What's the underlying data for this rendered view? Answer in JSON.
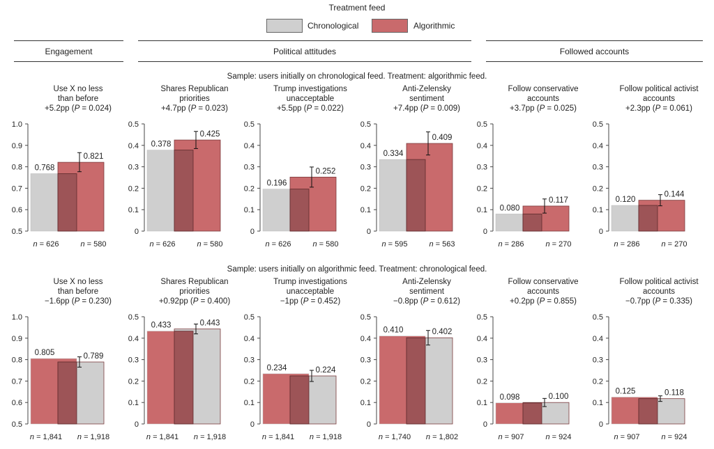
{
  "legend": {
    "title": "Treatment feed",
    "items": [
      {
        "label": "Chronological",
        "color": "#cfcfcf"
      },
      {
        "label": "Algorithmic",
        "color": "#c96a6c"
      }
    ]
  },
  "groups": [
    {
      "label": "Engagement"
    },
    {
      "label": "Political attitudes"
    },
    {
      "label": "Followed accounts"
    }
  ],
  "samples": [
    "Sample: users initially on chronological feed. Treatment: algorithmic feed.",
    "Sample: users initially on algorithmic feed. Treatment: chronological feed."
  ],
  "chart_data": [
    {
      "type": "bar",
      "row": 0,
      "title_lines": [
        "Use X no less",
        "than before"
      ],
      "effect": "+5.2pp",
      "p": "0.024",
      "ylim": [
        0.5,
        1.0
      ],
      "ticks": [
        "0.5",
        "0.6",
        "0.7",
        "0.8",
        "0.9",
        "1.0"
      ],
      "bars": [
        {
          "series": "Chronological",
          "value": 0.768,
          "label": "0.768",
          "n": "626"
        },
        {
          "series": "Algorithmic",
          "value": 0.821,
          "label": "0.821",
          "n": "580",
          "err": [
            0.777,
            0.866
          ]
        }
      ]
    },
    {
      "type": "bar",
      "row": 0,
      "title_lines": [
        "Shares Republican",
        "priorities"
      ],
      "effect": "+4.7pp",
      "p": "0.023",
      "ylim": [
        0,
        0.5
      ],
      "ticks": [
        "0",
        "0.1",
        "0.2",
        "0.3",
        "0.4",
        "0.5"
      ],
      "bars": [
        {
          "series": "Chronological",
          "value": 0.378,
          "label": "0.378",
          "n": "626"
        },
        {
          "series": "Algorithmic",
          "value": 0.425,
          "label": "0.425",
          "n": "580",
          "err": [
            0.385,
            0.465
          ]
        }
      ]
    },
    {
      "type": "bar",
      "row": 0,
      "title_lines": [
        "Trump investigations",
        "unacceptable"
      ],
      "effect": "+5.5pp",
      "p": "0.022",
      "ylim": [
        0,
        0.5
      ],
      "ticks": [
        "0",
        "0.1",
        "0.2",
        "0.3",
        "0.4",
        "0.5"
      ],
      "bars": [
        {
          "series": "Chronological",
          "value": 0.196,
          "label": "0.196",
          "n": "626"
        },
        {
          "series": "Algorithmic",
          "value": 0.252,
          "label": "0.252",
          "n": "580",
          "err": [
            0.205,
            0.299
          ]
        }
      ]
    },
    {
      "type": "bar",
      "row": 0,
      "title_lines": [
        "Anti-Zelensky",
        "sentiment"
      ],
      "effect": "+7.4pp",
      "p": "0.009",
      "ylim": [
        0,
        0.5
      ],
      "ticks": [
        "0",
        "0.1",
        "0.2",
        "0.3",
        "0.4",
        "0.5"
      ],
      "bars": [
        {
          "series": "Chronological",
          "value": 0.334,
          "label": "0.334",
          "n": "595"
        },
        {
          "series": "Algorithmic",
          "value": 0.409,
          "label": "0.409",
          "n": "563",
          "err": [
            0.355,
            0.463
          ]
        }
      ]
    },
    {
      "type": "bar",
      "row": 0,
      "title_lines": [
        "Follow conservative",
        "accounts"
      ],
      "effect": "+3.7pp",
      "p": "0.025",
      "ylim": [
        0,
        0.5
      ],
      "ticks": [
        "0",
        "0.1",
        "0.2",
        "0.3",
        "0.4",
        "0.5"
      ],
      "bars": [
        {
          "series": "Chronological",
          "value": 0.08,
          "label": "0.080",
          "n": "286"
        },
        {
          "series": "Algorithmic",
          "value": 0.117,
          "label": "0.117",
          "n": "270",
          "err": [
            0.084,
            0.15
          ]
        }
      ]
    },
    {
      "type": "bar",
      "row": 0,
      "title_lines": [
        "Follow political activist",
        "accounts"
      ],
      "effect": "+2.3pp",
      "p": "0.061",
      "ylim": [
        0,
        0.5
      ],
      "ticks": [
        "0",
        "0.1",
        "0.2",
        "0.3",
        "0.4",
        "0.5"
      ],
      "bars": [
        {
          "series": "Chronological",
          "value": 0.12,
          "label": "0.120",
          "n": "286"
        },
        {
          "series": "Algorithmic",
          "value": 0.144,
          "label": "0.144",
          "n": "270",
          "err": [
            0.118,
            0.17
          ]
        }
      ]
    },
    {
      "type": "bar",
      "row": 1,
      "title_lines": [
        "Use X no less",
        "than before"
      ],
      "effect": "−1.6pp",
      "p": "0.230",
      "ylim": [
        0.5,
        1.0
      ],
      "ticks": [
        "0.5",
        "0.6",
        "0.7",
        "0.8",
        "0.9",
        "1.0"
      ],
      "bars": [
        {
          "series": "Algorithmic",
          "value": 0.805,
          "label": "0.805",
          "n": "1,841"
        },
        {
          "series": "Chronological",
          "value": 0.789,
          "label": "0.789",
          "n": "1,918",
          "err": [
            0.765,
            0.813
          ]
        }
      ]
    },
    {
      "type": "bar",
      "row": 1,
      "title_lines": [
        "Shares Republican",
        "priorities"
      ],
      "effect": "+0.92pp",
      "p": "0.400",
      "ylim": [
        0,
        0.5
      ],
      "ticks": [
        "0",
        "0.1",
        "0.2",
        "0.3",
        "0.4",
        "0.5"
      ],
      "bars": [
        {
          "series": "Algorithmic",
          "value": 0.433,
          "label": "0.433",
          "n": "1,841"
        },
        {
          "series": "Chronological",
          "value": 0.443,
          "label": "0.443",
          "n": "1,918",
          "err": [
            0.42,
            0.466
          ]
        }
      ]
    },
    {
      "type": "bar",
      "row": 1,
      "title_lines": [
        "Trump investigations",
        "unacceptable"
      ],
      "effect": "−1pp",
      "p": "0.452",
      "ylim": [
        0,
        0.5
      ],
      "ticks": [
        "0",
        "0.1",
        "0.2",
        "0.3",
        "0.4",
        "0.5"
      ],
      "bars": [
        {
          "series": "Algorithmic",
          "value": 0.234,
          "label": "0.234",
          "n": "1,841"
        },
        {
          "series": "Chronological",
          "value": 0.224,
          "label": "0.224",
          "n": "1,918",
          "err": [
            0.198,
            0.25
          ]
        }
      ]
    },
    {
      "type": "bar",
      "row": 1,
      "title_lines": [
        "Anti-Zelensky",
        "sentiment"
      ],
      "effect": "−0.8pp",
      "p": "0.612",
      "ylim": [
        0,
        0.5
      ],
      "ticks": [
        "0",
        "0.1",
        "0.2",
        "0.3",
        "0.4",
        "0.5"
      ],
      "bars": [
        {
          "series": "Algorithmic",
          "value": 0.41,
          "label": "0.410",
          "n": "1,740"
        },
        {
          "series": "Chronological",
          "value": 0.402,
          "label": "0.402",
          "n": "1,802",
          "err": [
            0.368,
            0.436
          ]
        }
      ]
    },
    {
      "type": "bar",
      "row": 1,
      "title_lines": [
        "Follow conservative",
        "accounts"
      ],
      "effect": "+0.2pp",
      "p": "0.855",
      "ylim": [
        0,
        0.5
      ],
      "ticks": [
        "0",
        "0.1",
        "0.2",
        "0.3",
        "0.4",
        "0.5"
      ],
      "bars": [
        {
          "series": "Algorithmic",
          "value": 0.098,
          "label": "0.098",
          "n": "907"
        },
        {
          "series": "Chronological",
          "value": 0.1,
          "label": "0.100",
          "n": "924",
          "err": [
            0.081,
            0.119
          ]
        }
      ]
    },
    {
      "type": "bar",
      "row": 1,
      "title_lines": [
        "Follow political activist",
        "accounts"
      ],
      "effect": "−0.7pp",
      "p": "0.335",
      "ylim": [
        0,
        0.5
      ],
      "ticks": [
        "0",
        "0.1",
        "0.2",
        "0.3",
        "0.4",
        "0.5"
      ],
      "bars": [
        {
          "series": "Algorithmic",
          "value": 0.125,
          "label": "0.125",
          "n": "907"
        },
        {
          "series": "Chronological",
          "value": 0.118,
          "label": "0.118",
          "n": "924",
          "err": [
            0.105,
            0.131
          ]
        }
      ]
    }
  ]
}
